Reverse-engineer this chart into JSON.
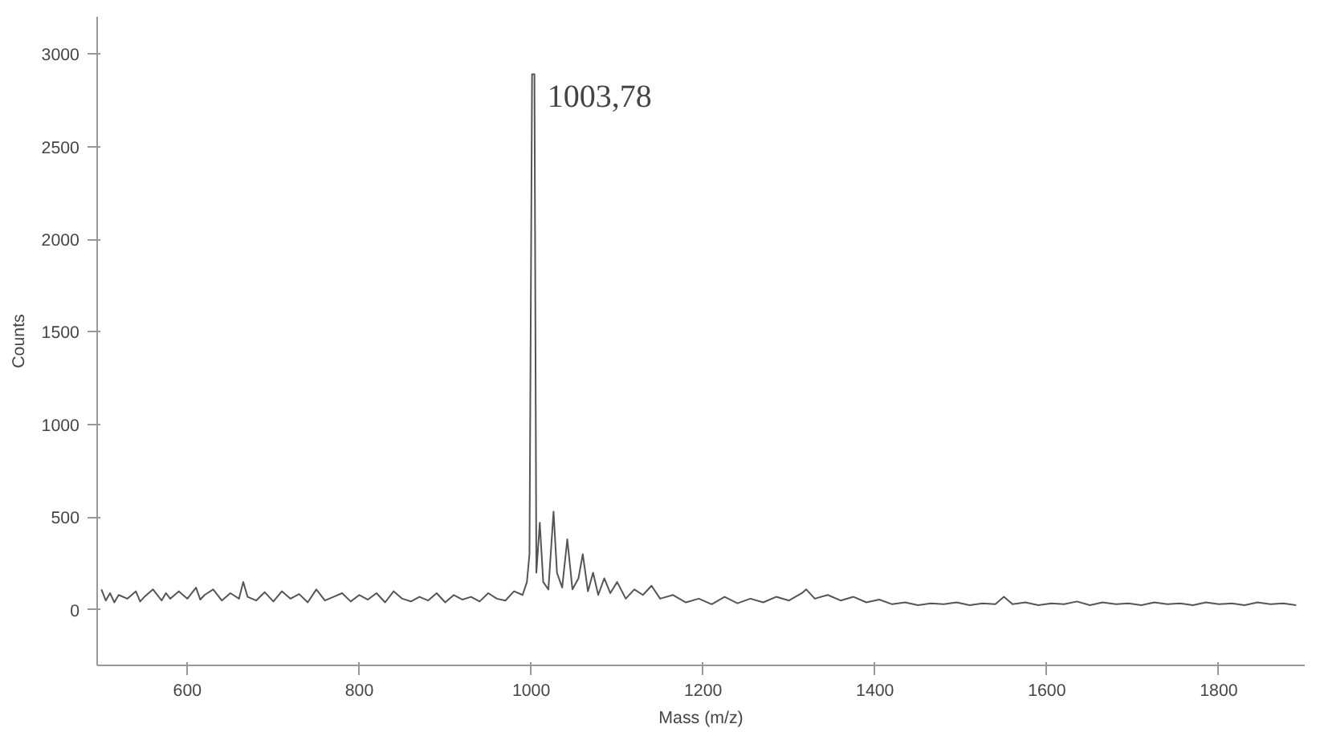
{
  "chart_data": {
    "type": "line",
    "xlabel": "Mass (m/z)",
    "ylabel": "Counts",
    "xlim": [
      495,
      1900
    ],
    "ylim": [
      -300,
      3200
    ],
    "xticks": [
      600,
      800,
      1000,
      1200,
      1400,
      1600,
      1800
    ],
    "yticks": [
      0,
      500,
      1000,
      1500,
      2000,
      2500,
      3000
    ],
    "grid": false,
    "marker": "none",
    "line_style": "solid",
    "annotations": [
      {
        "text": "1003,78",
        "x": 1003.78,
        "y": 2890
      }
    ],
    "series": [
      {
        "color": "#555555",
        "x": [
          500,
          505,
          510,
          515,
          520,
          530,
          540,
          545,
          550,
          560,
          570,
          575,
          580,
          590,
          600,
          610,
          615,
          620,
          630,
          640,
          650,
          660,
          665,
          670,
          680,
          690,
          700,
          710,
          720,
          730,
          740,
          750,
          760,
          770,
          780,
          790,
          800,
          810,
          820,
          830,
          840,
          850,
          860,
          870,
          880,
          890,
          900,
          910,
          920,
          930,
          940,
          950,
          960,
          970,
          980,
          990,
          995,
          998,
          1001,
          1003.78,
          1006,
          1010,
          1014,
          1020,
          1026,
          1030,
          1036,
          1042,
          1048,
          1055,
          1060,
          1066,
          1072,
          1078,
          1085,
          1092,
          1100,
          1110,
          1120,
          1130,
          1140,
          1150,
          1165,
          1180,
          1195,
          1210,
          1225,
          1240,
          1255,
          1270,
          1285,
          1300,
          1315,
          1320,
          1330,
          1345,
          1360,
          1375,
          1390,
          1405,
          1420,
          1435,
          1450,
          1465,
          1480,
          1495,
          1510,
          1525,
          1540,
          1550,
          1560,
          1575,
          1590,
          1605,
          1620,
          1635,
          1650,
          1665,
          1680,
          1695,
          1710,
          1725,
          1740,
          1755,
          1770,
          1785,
          1800,
          1815,
          1830,
          1845,
          1860,
          1875,
          1890
        ],
        "values": [
          110,
          50,
          90,
          40,
          80,
          60,
          100,
          45,
          70,
          110,
          50,
          90,
          60,
          100,
          60,
          120,
          55,
          80,
          110,
          50,
          90,
          60,
          150,
          70,
          50,
          95,
          45,
          100,
          60,
          85,
          40,
          110,
          50,
          70,
          90,
          45,
          80,
          55,
          90,
          40,
          100,
          60,
          45,
          70,
          50,
          90,
          40,
          80,
          55,
          70,
          45,
          90,
          60,
          50,
          100,
          80,
          150,
          300,
          2890,
          2890,
          200,
          470,
          150,
          110,
          530,
          200,
          120,
          380,
          110,
          170,
          300,
          100,
          200,
          80,
          170,
          90,
          150,
          60,
          110,
          80,
          130,
          60,
          80,
          40,
          60,
          30,
          70,
          35,
          60,
          40,
          70,
          50,
          90,
          110,
          60,
          80,
          50,
          70,
          40,
          55,
          30,
          40,
          25,
          35,
          30,
          40,
          25,
          35,
          30,
          70,
          30,
          40,
          25,
          35,
          30,
          45,
          25,
          40,
          30,
          35,
          25,
          40,
          30,
          35,
          25,
          40,
          30,
          35,
          25,
          40,
          30,
          35,
          25
        ]
      }
    ]
  }
}
